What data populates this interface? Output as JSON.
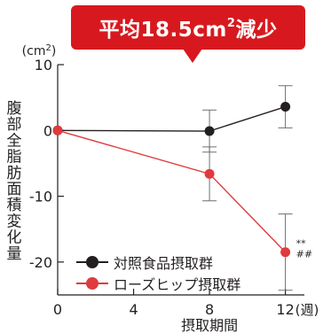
{
  "callout": {
    "prefix": "平均18.5cm",
    "sup": "2",
    "suffix": "減少"
  },
  "colors": {
    "control": "#231f20",
    "rose": "#e03a3e",
    "callout": "#d7191f",
    "axis": "#231f20"
  },
  "chart_data": {
    "type": "line",
    "x": [
      0,
      8,
      12
    ],
    "xticks": [
      "0",
      "4",
      "8",
      "12"
    ],
    "xtick_values": [
      0,
      4,
      8,
      12
    ],
    "xunit": "(週)",
    "xlabel": "摂取期間",
    "ylabel": "腹部全脂肪面積変化量",
    "yunit_base": "(cm",
    "yunit_sup": "2",
    "yunit_close": ")",
    "ylim": [
      -25,
      10
    ],
    "yticks": [
      10,
      0,
      -10,
      -20
    ],
    "xlim": [
      0,
      13
    ],
    "series": [
      {
        "name": "対照食品摂取群",
        "values": [
          0,
          -0.1,
          3.6
        ],
        "errors": [
          0,
          3.2,
          3.2
        ]
      },
      {
        "name": "ローズヒップ摂取群",
        "values": [
          0,
          -6.6,
          -18.5
        ],
        "errors": [
          0,
          4.1,
          5.8
        ]
      }
    ],
    "annotations": [
      {
        "series": 1,
        "x": 12,
        "lines": [
          "**",
          "##"
        ]
      }
    ]
  }
}
